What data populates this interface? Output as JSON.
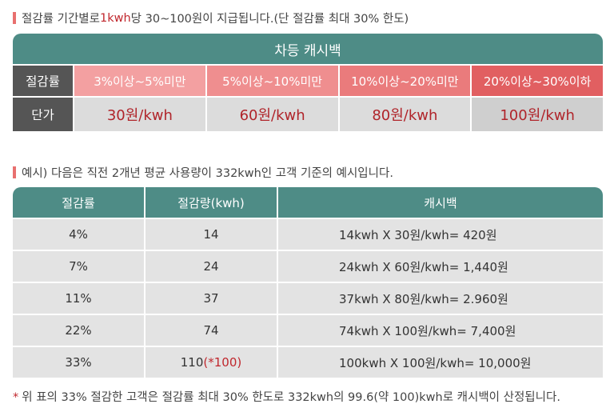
{
  "notice": {
    "prefix": "절감률 기간별로 ",
    "highlight": "1kwh",
    "suffix": " 당 30~100원이 지급됩니다.(단 절감률 최대 30% 한도)"
  },
  "table1": {
    "title": "차등 캐시백",
    "row_labels": [
      "절감률",
      "단가"
    ],
    "tiers": [
      {
        "range": "3%이상~5%미만",
        "price": "30원/kwh",
        "color": "#f3a0a1"
      },
      {
        "range": "5%이상~10%미만",
        "price": "60원/kwh",
        "color": "#ef8e8f"
      },
      {
        "range": "10%이상~20%미만",
        "price": "80원/kwh",
        "color": "#ea7b7c"
      },
      {
        "range": "20%이상~30%이하",
        "price": "100원/kwh",
        "color": "#e15f61"
      }
    ]
  },
  "example_note": "예시) 다음은 직전 2개년 평균 사용량이 332kwh인 고객 기준의 예시입니다.",
  "table2": {
    "headers": [
      "절감률",
      "절감량(kwh)",
      "캐시백"
    ],
    "rows": [
      {
        "rate": "4%",
        "amount": "14",
        "extra": "",
        "cashback": "14kwh X 30원/kwh= 420원"
      },
      {
        "rate": "7%",
        "amount": "24",
        "extra": "",
        "cashback": "24kwh X 60원/kwh= 1,440원"
      },
      {
        "rate": "11%",
        "amount": "37",
        "extra": "",
        "cashback": "37kwh X  80원/kwh= 2.960원"
      },
      {
        "rate": "22%",
        "amount": "74",
        "extra": "",
        "cashback": "74kwh X 100원/kwh= 7,400원"
      },
      {
        "rate": "33%",
        "amount": "110",
        "extra": "(*100)",
        "cashback": "100kwh X 100원/kwh= 10,000원"
      }
    ]
  },
  "footnote": {
    "star": "*",
    "text": "위 표의 33% 절감한 고객은 절감률 최대 30% 한도로 332kwh의 99.6(약 100)kwh로 캐시백이 산정됩니다."
  },
  "colors": {
    "teal": "#4e8c86",
    "label_gray": "#555555",
    "accent_red": "#c0272d"
  }
}
